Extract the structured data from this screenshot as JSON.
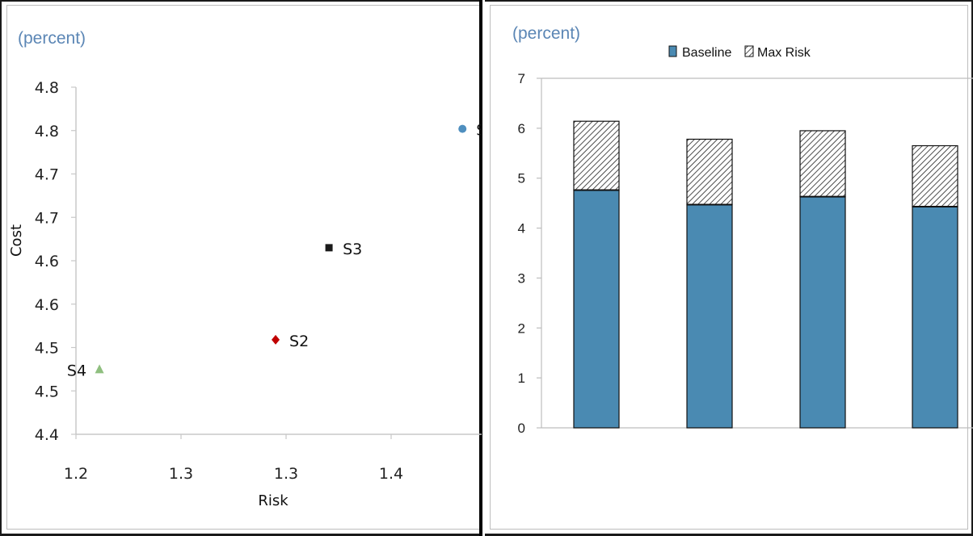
{
  "chart_data": [
    {
      "type": "scatter",
      "unit_label": "(percent)",
      "xlabel": "Risk",
      "ylabel": "Cost",
      "x_ticks": [
        "1.2",
        "1.3",
        "1.3",
        "1.4"
      ],
      "y_ticks": [
        "4.4",
        "4.5",
        "4.5",
        "4.6",
        "4.6",
        "4.7",
        "4.7",
        "4.8",
        "4.8"
      ],
      "xlim": [
        1.2,
        1.58
      ],
      "ylim": [
        4.4,
        4.8
      ],
      "grid": false,
      "points": [
        {
          "label": "S",
          "x": 1.562,
          "y": 4.752,
          "marker": "circle",
          "color": "#4f8fbf"
        },
        {
          "label": "S3",
          "x": 1.437,
          "y": 4.615,
          "marker": "square",
          "color": "#1a1a1a"
        },
        {
          "label": "S2",
          "x": 1.387,
          "y": 4.509,
          "marker": "diamond",
          "color": "#c00000"
        },
        {
          "label": "S4",
          "x": 1.222,
          "y": 4.475,
          "marker": "triangle",
          "color": "#8fbf7f"
        }
      ]
    },
    {
      "type": "bar",
      "stacked": true,
      "unit_label": "(percent)",
      "ylim": [
        0,
        7
      ],
      "y_ticks": [
        "0",
        "1",
        "2",
        "3",
        "4",
        "5",
        "6",
        "7"
      ],
      "grid": false,
      "legend_position": "top",
      "categories": [
        "",
        "",
        "",
        ""
      ],
      "series": [
        {
          "name": "Baseline",
          "values": [
            4.76,
            4.47,
            4.63,
            4.43
          ],
          "color": "#4a8ab2"
        },
        {
          "name": "Max Risk",
          "values": [
            1.38,
            1.31,
            1.32,
            1.22
          ],
          "color": "#ffffff",
          "pattern": "hatch"
        }
      ]
    }
  ]
}
